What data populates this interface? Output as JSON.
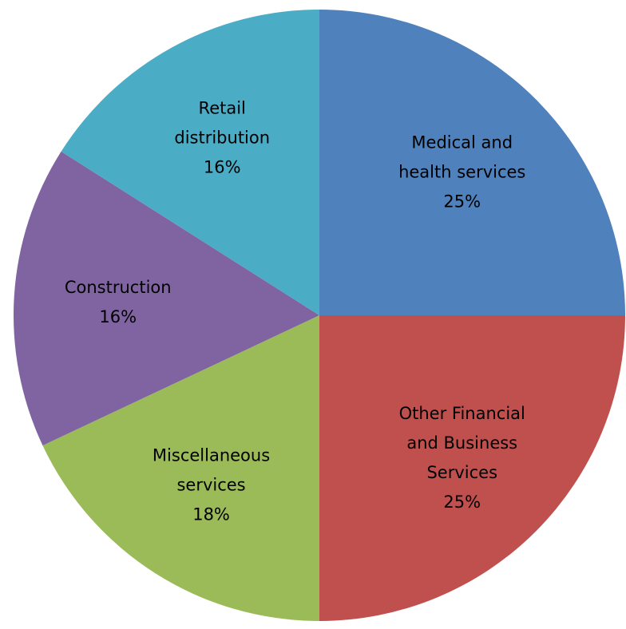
{
  "chart_data": {
    "type": "pie",
    "categories": [
      "Medical and health services",
      "Other Financial and Business Services",
      "Miscellaneous services",
      "Construction",
      "Retail distribution"
    ],
    "values": [
      25,
      25,
      18,
      16,
      16
    ],
    "value_labels": [
      "25%",
      "25%",
      "18%",
      "16%",
      "16%"
    ],
    "colors": [
      "#4f81bd",
      "#c0504d",
      "#9bbb59",
      "#8064a2",
      "#4bacc6"
    ]
  }
}
